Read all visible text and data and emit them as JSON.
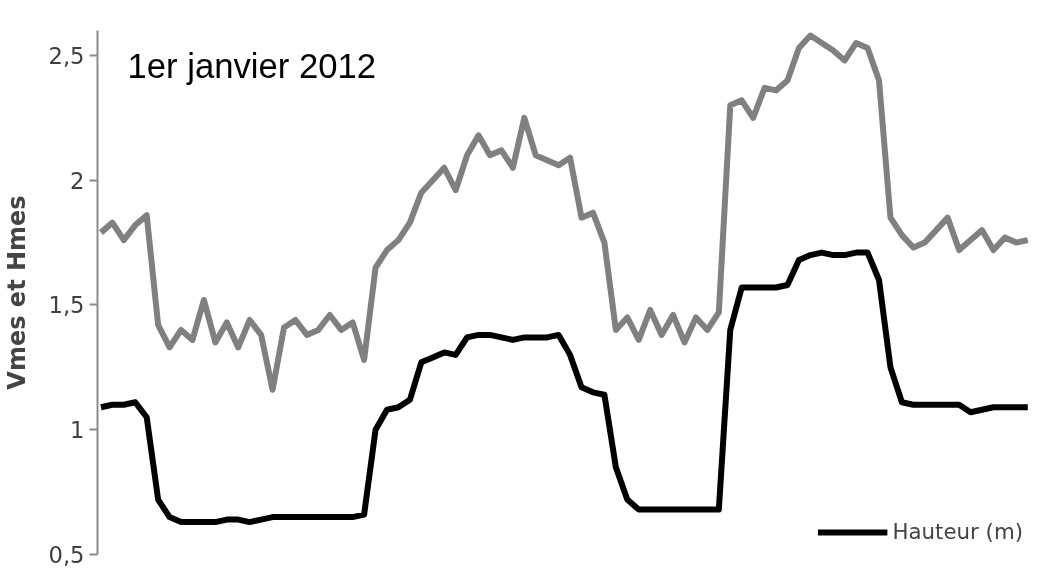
{
  "chart_data": {
    "type": "line",
    "ylabel": "Vmes et Hmes",
    "annotations": [
      "1er janvier 2012"
    ],
    "categories": [
      null,
      null,
      null,
      null,
      null,
      null,
      null,
      null,
      null,
      null,
      null,
      null,
      null,
      null,
      null,
      null,
      null,
      null,
      null,
      null,
      null,
      null,
      null,
      null,
      null,
      null,
      null,
      null,
      null,
      null,
      null,
      null,
      null,
      null,
      null,
      null,
      null,
      null,
      null,
      null,
      null,
      null,
      null,
      null,
      null,
      null,
      null,
      null,
      null,
      null,
      null,
      null,
      null,
      null,
      null,
      null,
      null,
      null,
      null,
      null,
      null,
      null,
      null,
      null,
      null,
      null,
      null,
      null,
      null,
      null,
      null,
      null,
      null,
      null,
      null,
      null,
      null,
      null,
      null,
      null,
      null,
      null
    ],
    "series": [
      {
        "color": "#808080",
        "values": [
          1.79,
          1.83,
          1.76,
          1.82,
          1.86,
          1.42,
          1.33,
          1.4,
          1.36,
          1.52,
          1.35,
          1.43,
          1.33,
          1.44,
          1.38,
          1.16,
          1.41,
          1.44,
          1.38,
          1.4,
          1.46,
          1.4,
          1.43,
          1.28,
          1.65,
          1.72,
          1.76,
          1.83,
          1.95,
          2.0,
          2.05,
          1.96,
          2.1,
          2.18,
          2.1,
          2.12,
          2.05,
          2.25,
          2.1,
          2.08,
          2.06,
          2.09,
          1.85,
          1.87,
          1.75,
          1.4,
          1.45,
          1.36,
          1.48,
          1.38,
          1.46,
          1.35,
          1.45,
          1.4,
          1.47,
          2.3,
          2.32,
          2.25,
          2.37,
          2.36,
          2.4,
          2.53,
          2.58,
          2.55,
          2.52,
          2.48,
          2.55,
          2.53,
          2.4,
          1.85,
          1.78,
          1.73,
          1.75,
          1.8,
          1.85,
          1.72,
          1.76,
          1.8,
          1.72,
          1.77,
          1.75,
          1.76
        ]
      },
      {
        "name": "Hauteur (m)",
        "color": "#000000",
        "values": [
          1.09,
          1.1,
          1.1,
          1.11,
          1.05,
          0.72,
          0.65,
          0.63,
          0.63,
          0.63,
          0.63,
          0.64,
          0.64,
          0.63,
          0.64,
          0.65,
          0.65,
          0.65,
          0.65,
          0.65,
          0.65,
          0.65,
          0.65,
          0.66,
          1.0,
          1.08,
          1.09,
          1.12,
          1.27,
          1.29,
          1.31,
          1.3,
          1.37,
          1.38,
          1.38,
          1.37,
          1.36,
          1.37,
          1.37,
          1.37,
          1.38,
          1.3,
          1.17,
          1.15,
          1.14,
          0.85,
          0.72,
          0.68,
          0.68,
          0.68,
          0.68,
          0.68,
          0.68,
          0.68,
          0.68,
          1.4,
          1.57,
          1.57,
          1.57,
          1.57,
          1.58,
          1.68,
          1.7,
          1.71,
          1.7,
          1.7,
          1.71,
          1.71,
          1.6,
          1.25,
          1.11,
          1.1,
          1.1,
          1.1,
          1.1,
          1.1,
          1.07,
          1.08,
          1.09,
          1.09,
          1.09,
          1.09
        ]
      }
    ],
    "ylim": [
      0.5,
      2.6
    ],
    "yticks": [
      {
        "value": 0.5,
        "label": "0,5"
      },
      1,
      {
        "value": 1.5,
        "label": "1,5"
      },
      2,
      {
        "value": 2.5,
        "label": "2,5"
      }
    ],
    "tick_labels": "y",
    "grid": false,
    "legend": "bottom right",
    "marker": "none",
    "line_style": "solid"
  }
}
